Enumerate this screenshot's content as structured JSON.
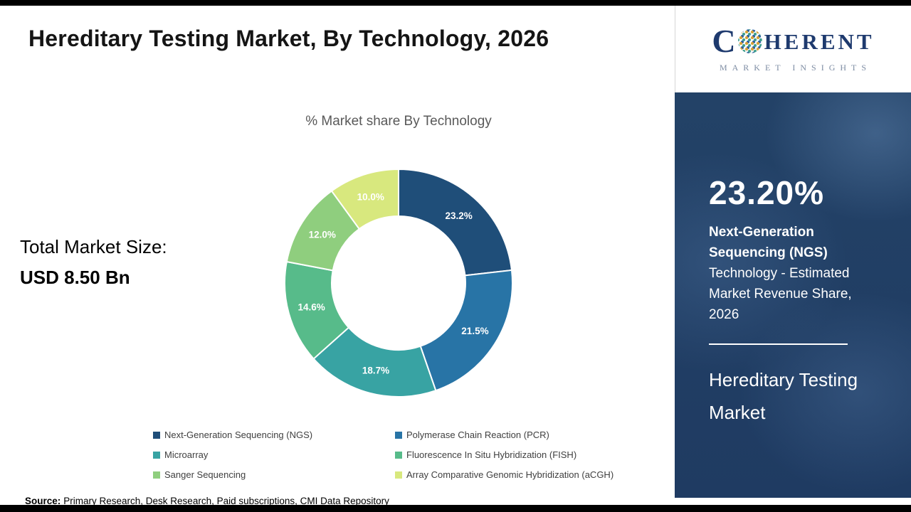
{
  "header": {
    "title": "Hereditary Testing Market, By Technology, 2026"
  },
  "chart_data": {
    "type": "donut",
    "title": "% Market share By Technology",
    "unit": "%",
    "start_angle_deg": 0,
    "direction": "clockwise",
    "inner_radius_ratio": 0.59,
    "legend_position": "bottom",
    "label_color": "#ffffff",
    "segments": [
      {
        "label": "Next-Generation Sequencing (NGS)",
        "value": 23.2,
        "display": "23.2%",
        "color": "#1f4e79"
      },
      {
        "label": "Polymerase Chain Reaction (PCR)",
        "value": 21.5,
        "display": "21.5%",
        "color": "#2874a6"
      },
      {
        "label": "Microarray",
        "value": 18.7,
        "display": "18.7%",
        "color": "#38a3a3"
      },
      {
        "label": "Fluorescence In Situ Hybridization (FISH)",
        "value": 14.6,
        "display": "14.6%",
        "color": "#57bb8a"
      },
      {
        "label": "Sanger Sequencing",
        "value": 12.0,
        "display": "12.0%",
        "color": "#8fce7e"
      },
      {
        "label": "Array Comparative Genomic Hybridization (aCGH)",
        "value": 10.0,
        "display": "10.0%",
        "color": "#d8e87e"
      }
    ]
  },
  "total": {
    "label": "Total Market Size:",
    "value": "USD 8.50 Bn"
  },
  "source": {
    "label": "Source:",
    "text": "Primary Research, Desk Research, Paid subscriptions, CMI Data Repository"
  },
  "sidebar": {
    "logo": {
      "prefix": "C",
      "suffix": "HERENT",
      "tagline": "MARKET INSIGHTS"
    },
    "stat_value": "23.20%",
    "stat_bold": "Next-Generation Sequencing (NGS)",
    "stat_text": "Technology - Estimated Market Revenue Share, 2026",
    "market_name": "Hereditary Testing Market"
  },
  "colors": {
    "brand_navy": "#1e3a6e",
    "panel_navy": "#25476f"
  }
}
